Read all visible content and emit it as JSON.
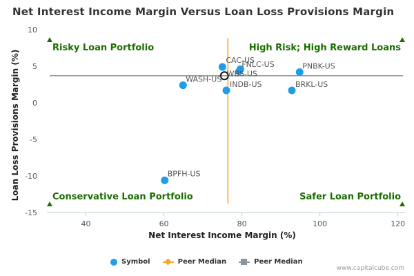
{
  "title": "Net Interest Income Margin Versus Loan Loss Provisions Margin",
  "credit": "www.capitalcube.com",
  "colors": {
    "point": "#1e9ee6",
    "peer_x_line": "#f5a623",
    "peer_y_line": "#8a949c",
    "quadrant_text": "#1a6e00",
    "marker": "#1a6e00"
  },
  "legend": {
    "symbol": "Symbol",
    "peer_x": "Peer Median",
    "peer_y": "Peer Median"
  },
  "chart_data": {
    "type": "scatter",
    "title": "Net Interest Income Margin Versus Loan Loss Provisions Margin",
    "xlabel": "Net Interest Income Margin (%)",
    "ylabel": "Loan Loss Provisions Margin (%)",
    "xlim": [
      30,
      122
    ],
    "ylim": [
      -15,
      10
    ],
    "xticks": [
      40,
      60,
      80,
      100,
      120
    ],
    "yticks": [
      10,
      5,
      0,
      -5,
      -10,
      -15
    ],
    "grid": false,
    "legend_position": "bottom",
    "points": [
      {
        "label": "CAC-US",
        "x": 75.0,
        "y": 4.9
      },
      {
        "label": "FNLC-US",
        "x": 79.6,
        "y": 4.6
      },
      {
        "label": "WBS-US",
        "x": 79.3,
        "y": 4.3
      },
      {
        "label": "PNBK-US",
        "x": 94.8,
        "y": 4.2
      },
      {
        "label": "WASH-US",
        "x": 64.9,
        "y": 2.4
      },
      {
        "label": "INDB-US",
        "x": 76.0,
        "y": 1.7
      },
      {
        "label": "BRKL-US",
        "x": 92.8,
        "y": 1.7
      },
      {
        "label": "BPFH-US",
        "x": 60.2,
        "y": -10.6
      }
    ],
    "peer_median": {
      "x": 76.4,
      "y": 3.7
    },
    "quadrants": {
      "top_left": "Risky Loan Portfolio",
      "top_right": "High Risk; High Reward Loans",
      "bottom_left": "Conservative Loan Portfolio",
      "bottom_right": "Safer Loan Portfolio"
    }
  }
}
